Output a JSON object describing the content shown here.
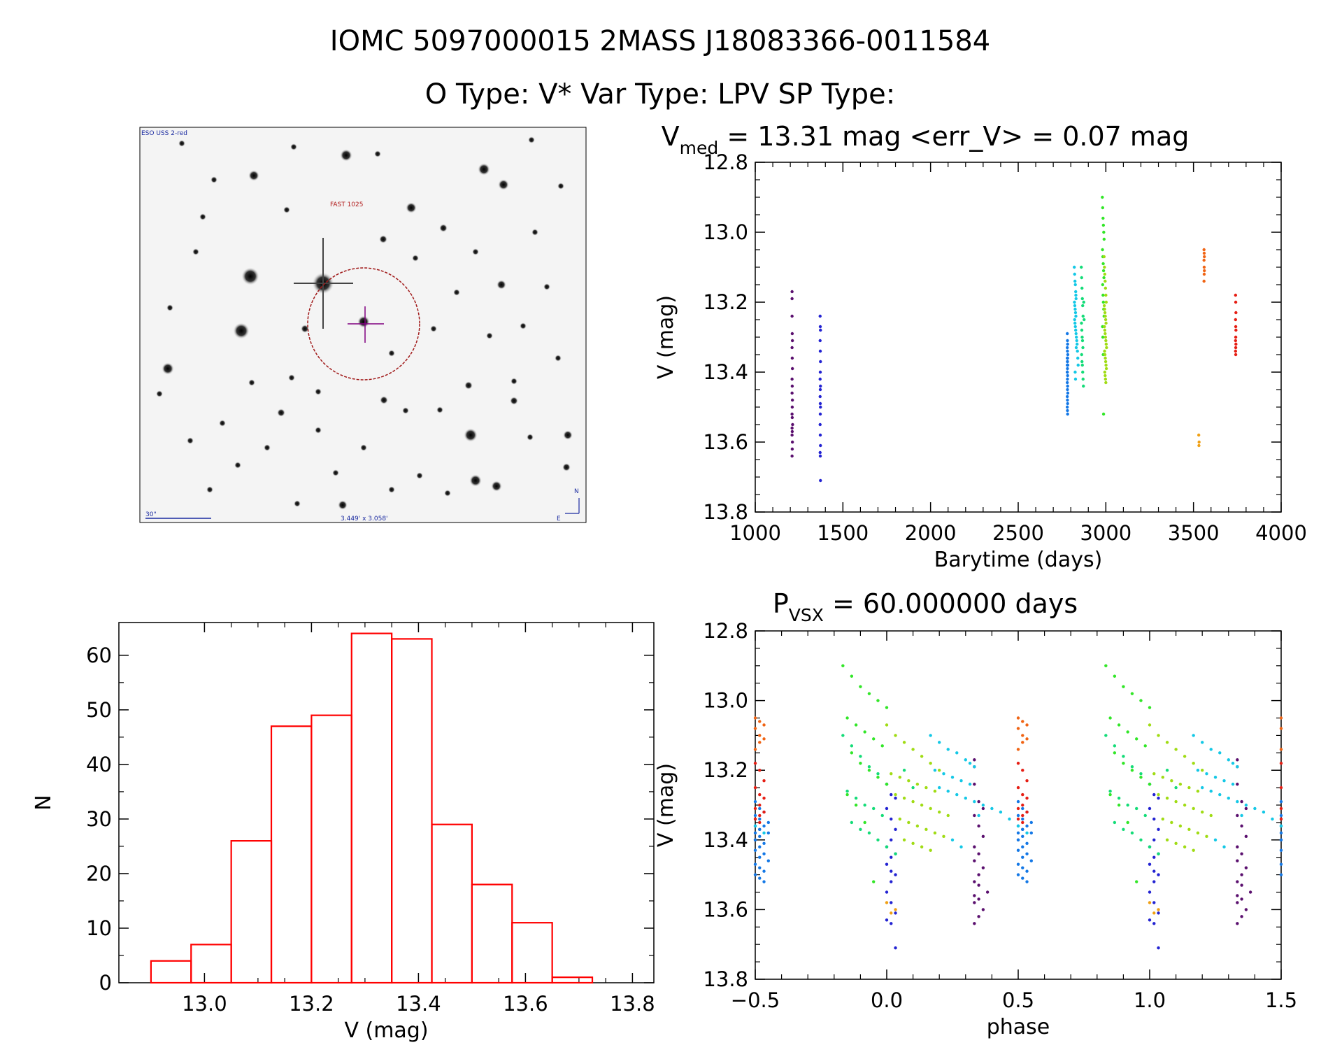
{
  "header": {
    "line1": "IOMC 5097000015    2MASS J18083366-0011584",
    "line2": "O Type: V*  Var Type: LPV  SP Type:"
  },
  "image_panel": {
    "survey_label": "ESO USS 2-red",
    "target_label": "FAST 1025",
    "scale_label": "30\"",
    "fov_label": "3.449' x 3.058'",
    "north": "N",
    "east": "E"
  },
  "colors": {
    "histogram_edge": "#ff0000",
    "image_circle": "#a01818",
    "crosshair": "#800080"
  },
  "chart_data": [
    {
      "id": "lightcurve",
      "type": "scatter",
      "title_prefix": "V",
      "title_subscript": "med",
      "title_rest": " = 13.31 mag <err_V> = 0.07 mag",
      "xlabel": "Barytime (days)",
      "ylabel": "V (mag)",
      "xlim": [
        1000,
        4000
      ],
      "ylim": [
        13.8,
        12.8
      ],
      "xticks": [
        1000,
        1500,
        2000,
        2500,
        3000,
        3500,
        4000
      ],
      "xtick_labels": [
        "1000",
        "1500",
        "2000",
        "2500",
        "3000",
        "3500",
        "4000"
      ],
      "yticks": [
        12.8,
        13.0,
        13.2,
        13.4,
        13.6,
        13.8
      ],
      "ytick_labels": [
        "12.8",
        "13.0",
        "13.2",
        "13.4",
        "13.6",
        "13.8"
      ],
      "series": [
        {
          "name": "s1",
          "color": "#5a0f6e",
          "x": [
            1210,
            1210,
            1210,
            1211,
            1212,
            1210,
            1211,
            1212,
            1210,
            1211,
            1210,
            1212,
            1211,
            1210,
            1211,
            1213,
            1210,
            1211,
            1210,
            1212,
            1211,
            1210
          ],
          "y": [
            13.17,
            13.19,
            13.24,
            13.29,
            13.31,
            13.33,
            13.36,
            13.39,
            13.42,
            13.44,
            13.46,
            13.48,
            13.5,
            13.52,
            13.53,
            13.55,
            13.56,
            13.57,
            13.58,
            13.6,
            13.62,
            13.64
          ]
        },
        {
          "name": "s2",
          "color": "#2323d2",
          "x": [
            1370,
            1371,
            1372,
            1370,
            1371,
            1372,
            1371,
            1370,
            1372,
            1371,
            1370,
            1371,
            1372,
            1371,
            1370,
            1371,
            1372,
            1370,
            1371,
            1372
          ],
          "y": [
            13.24,
            13.27,
            13.28,
            13.31,
            13.34,
            13.37,
            13.4,
            13.42,
            13.44,
            13.45,
            13.47,
            13.49,
            13.5,
            13.52,
            13.55,
            13.58,
            13.61,
            13.63,
            13.64,
            13.71
          ]
        },
        {
          "name": "s3",
          "color": "#1478e6",
          "x": [
            2780,
            2781,
            2782,
            2780,
            2781,
            2783,
            2780,
            2782,
            2781,
            2780,
            2783,
            2781,
            2780,
            2782,
            2781,
            2780,
            2782,
            2781,
            2783,
            2780,
            2781,
            2782,
            2780,
            2781,
            2782,
            2780,
            2781
          ],
          "y": [
            13.29,
            13.31,
            13.32,
            13.33,
            13.34,
            13.35,
            13.36,
            13.36,
            13.37,
            13.38,
            13.38,
            13.39,
            13.4,
            13.41,
            13.42,
            13.43,
            13.44,
            13.45,
            13.46,
            13.47,
            13.48,
            13.49,
            13.5,
            13.51,
            13.52,
            13.4,
            13.37
          ]
        },
        {
          "name": "s4",
          "color": "#14c8e6",
          "x": [
            2820,
            2822,
            2824,
            2826,
            2828,
            2830,
            2821,
            2823,
            2825,
            2827,
            2829,
            2822,
            2824,
            2826,
            2828,
            2830,
            2832,
            2834,
            2836,
            2838,
            2840,
            2842,
            2825,
            2827,
            2829,
            2831
          ],
          "y": [
            13.1,
            13.12,
            13.14,
            13.15,
            13.17,
            13.19,
            13.2,
            13.21,
            13.22,
            13.23,
            13.24,
            13.25,
            13.26,
            13.27,
            13.28,
            13.29,
            13.3,
            13.31,
            13.32,
            13.34,
            13.36,
            13.38,
            13.4,
            13.42,
            13.18,
            13.33
          ]
        },
        {
          "name": "s5",
          "color": "#14dc78",
          "x": [
            2860,
            2862,
            2864,
            2866,
            2868,
            2870,
            2861,
            2863,
            2865,
            2867,
            2869,
            2862,
            2864,
            2866,
            2868,
            2870,
            2872,
            2874,
            2876
          ],
          "y": [
            13.1,
            13.13,
            13.16,
            13.19,
            13.21,
            13.24,
            13.26,
            13.28,
            13.3,
            13.31,
            13.33,
            13.35,
            13.37,
            13.38,
            13.4,
            13.42,
            13.44,
            13.2,
            13.25
          ]
        },
        {
          "name": "s6",
          "color": "#32e628",
          "x": [
            2980,
            2982,
            2984,
            2986,
            2988,
            2990,
            2981,
            2983,
            2985,
            2987,
            2989,
            2982,
            2984,
            2986,
            2988,
            2990,
            2981,
            2983,
            2985,
            2987
          ],
          "y": [
            12.9,
            12.93,
            12.96,
            12.98,
            13.0,
            13.02,
            13.05,
            13.07,
            13.09,
            13.11,
            13.13,
            13.15,
            13.18,
            13.2,
            13.22,
            13.24,
            13.27,
            13.3,
            13.35,
            13.52
          ]
        },
        {
          "name": "s7",
          "color": "#a0dc14",
          "x": [
            2990,
            2992,
            2994,
            2996,
            2998,
            3000,
            3002,
            2991,
            2993,
            2995,
            2997,
            2999,
            3001,
            2992,
            2994,
            2996,
            2998,
            3000,
            3002,
            3004,
            2993,
            2995,
            2997,
            2999,
            3001,
            3003,
            2994,
            2996,
            2998,
            3000
          ],
          "y": [
            13.07,
            13.1,
            13.12,
            13.14,
            13.16,
            13.18,
            13.2,
            13.21,
            13.22,
            13.23,
            13.24,
            13.25,
            13.26,
            13.27,
            13.28,
            13.29,
            13.3,
            13.31,
            13.32,
            13.33,
            13.34,
            13.35,
            13.36,
            13.37,
            13.38,
            13.39,
            13.4,
            13.41,
            13.42,
            13.43
          ]
        },
        {
          "name": "s8",
          "color": "#f0a014",
          "x": [
            3530,
            3532,
            3531
          ],
          "y": [
            13.58,
            13.6,
            13.61
          ]
        },
        {
          "name": "s9",
          "color": "#f06414",
          "x": [
            3560,
            3561,
            3562,
            3560,
            3561,
            3562,
            3561,
            3560
          ],
          "y": [
            13.05,
            13.06,
            13.07,
            13.08,
            13.1,
            13.11,
            13.12,
            13.14
          ]
        },
        {
          "name": "s10",
          "color": "#e61e14",
          "x": [
            3740,
            3741,
            3742,
            3740,
            3741,
            3742,
            3741,
            3740,
            3742,
            3741,
            3740,
            3741
          ],
          "y": [
            13.18,
            13.2,
            13.23,
            13.25,
            13.27,
            13.28,
            13.3,
            13.31,
            13.32,
            13.33,
            13.34,
            13.35
          ]
        }
      ]
    },
    {
      "id": "phased",
      "type": "scatter",
      "title_prefix": "P",
      "title_subscript": "VSX",
      "title_rest": " = 60.000000 days",
      "xlabel": "phase",
      "ylabel": "V (mag)",
      "xlim": [
        -0.5,
        1.5
      ],
      "ylim": [
        13.8,
        12.8
      ],
      "xticks": [
        -0.5,
        0.0,
        0.5,
        1.0,
        1.5
      ],
      "xtick_labels": [
        "−0.5",
        "0.0",
        "0.5",
        "1.0",
        "1.5"
      ],
      "yticks": [
        12.8,
        13.0,
        13.2,
        13.4,
        13.6,
        13.8
      ],
      "ytick_labels": [
        "12.8",
        "13.0",
        "13.2",
        "13.4",
        "13.6",
        "13.8"
      ],
      "period": 60.0,
      "epoch": 1370,
      "derived_from": "lightcurve"
    },
    {
      "id": "histogram",
      "type": "bar",
      "xlabel": "V (mag)",
      "ylabel": "N",
      "xlim": [
        12.84,
        13.84
      ],
      "ylim": [
        0,
        66
      ],
      "bin_edges": [
        12.9,
        12.975,
        13.05,
        13.125,
        13.2,
        13.275,
        13.35,
        13.425,
        13.5,
        13.575,
        13.65,
        13.725
      ],
      "values": [
        4,
        7,
        26,
        47,
        49,
        64,
        63,
        29,
        18,
        11,
        1
      ],
      "xticks": [
        13.0,
        13.2,
        13.4,
        13.6,
        13.8
      ],
      "xtick_labels": [
        "13.0",
        "13.2",
        "13.4",
        "13.6",
        "13.8"
      ],
      "yticks": [
        0,
        10,
        20,
        30,
        40,
        50,
        60
      ],
      "ytick_labels": [
        "0",
        "10",
        "20",
        "30",
        "40",
        "50",
        "60"
      ]
    }
  ]
}
